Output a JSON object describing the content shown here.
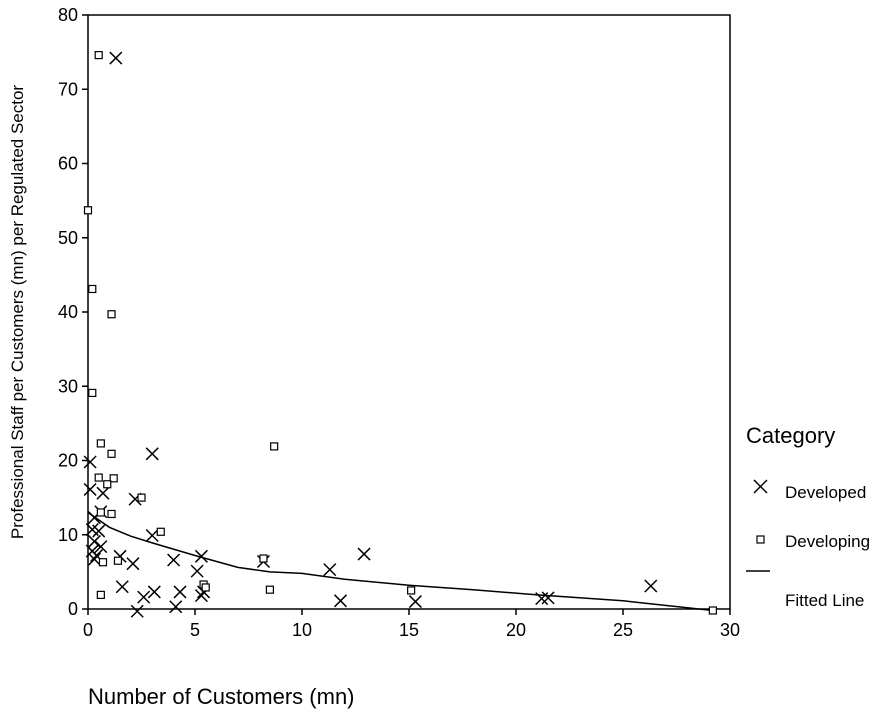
{
  "chart_data": {
    "type": "scatter",
    "title": "",
    "xlabel": "Number of Customers (mn)",
    "ylabel": "Professional Staff per Customers (mn) per Regulated Sector",
    "xlim": [
      0,
      30
    ],
    "ylim": [
      0,
      80
    ],
    "x_ticks": [
      0,
      5,
      10,
      15,
      20,
      25,
      30
    ],
    "y_ticks": [
      0,
      10,
      20,
      30,
      40,
      50,
      60,
      70,
      80
    ],
    "grid": false,
    "legend": {
      "title": "Category",
      "placement": "right",
      "entries": [
        "Developed",
        "Developing",
        "Fitted Line"
      ]
    },
    "series": [
      {
        "name": "Developed",
        "marker": "x",
        "points": [
          [
            1.3,
            74.2
          ],
          [
            0.1,
            19.8
          ],
          [
            3.0,
            20.9
          ],
          [
            0.1,
            16.1
          ],
          [
            0.7,
            15.6
          ],
          [
            2.2,
            14.8
          ],
          [
            0.6,
            13.1
          ],
          [
            0.3,
            12.3
          ],
          [
            0.2,
            10.7
          ],
          [
            0.5,
            10.5
          ],
          [
            3.0,
            9.9
          ],
          [
            0.3,
            9.1
          ],
          [
            0.6,
            8.4
          ],
          [
            0.2,
            7.8
          ],
          [
            0.4,
            7.2
          ],
          [
            1.5,
            7.1
          ],
          [
            4.0,
            6.6
          ],
          [
            5.3,
            7.1
          ],
          [
            8.2,
            6.4
          ],
          [
            12.9,
            7.4
          ],
          [
            2.1,
            6.1
          ],
          [
            0.3,
            6.7
          ],
          [
            5.1,
            5.1
          ],
          [
            11.3,
            5.3
          ],
          [
            1.6,
            3.0
          ],
          [
            3.1,
            2.3
          ],
          [
            4.3,
            2.3
          ],
          [
            5.4,
            2.3
          ],
          [
            2.6,
            1.6
          ],
          [
            5.3,
            1.8
          ],
          [
            11.8,
            1.1
          ],
          [
            15.3,
            1.0
          ],
          [
            21.2,
            1.4
          ],
          [
            21.5,
            1.5
          ],
          [
            26.3,
            3.1
          ],
          [
            4.1,
            0.3
          ],
          [
            2.3,
            -0.3
          ]
        ]
      },
      {
        "name": "Developing",
        "marker": "square",
        "points": [
          [
            0.5,
            74.6
          ],
          [
            0.0,
            53.7
          ],
          [
            0.2,
            43.1
          ],
          [
            1.1,
            39.7
          ],
          [
            0.2,
            29.1
          ],
          [
            0.6,
            22.3
          ],
          [
            8.7,
            21.9
          ],
          [
            1.1,
            20.9
          ],
          [
            0.5,
            17.7
          ],
          [
            1.2,
            17.6
          ],
          [
            0.9,
            16.8
          ],
          [
            2.5,
            15.0
          ],
          [
            0.6,
            13.0
          ],
          [
            1.1,
            12.8
          ],
          [
            3.4,
            10.4
          ],
          [
            1.4,
            6.5
          ],
          [
            0.7,
            6.3
          ],
          [
            8.2,
            6.8
          ],
          [
            5.4,
            3.3
          ],
          [
            5.5,
            2.9
          ],
          [
            8.5,
            2.6
          ],
          [
            15.1,
            2.5
          ],
          [
            0.6,
            1.9
          ],
          [
            29.2,
            -0.2
          ]
        ]
      }
    ],
    "fitted_line": {
      "name": "Fitted Line",
      "points": [
        [
          0.0,
          13.0
        ],
        [
          1.0,
          11.0
        ],
        [
          2.0,
          9.8
        ],
        [
          3.0,
          8.9
        ],
        [
          5.0,
          7.2
        ],
        [
          7.0,
          5.6
        ],
        [
          8.5,
          5.0
        ],
        [
          10.0,
          4.8
        ],
        [
          12.0,
          4.0
        ],
        [
          15.0,
          3.2
        ],
        [
          18.0,
          2.6
        ],
        [
          21.0,
          1.9
        ],
        [
          25.0,
          1.1
        ],
        [
          29.2,
          -0.2
        ]
      ]
    }
  }
}
